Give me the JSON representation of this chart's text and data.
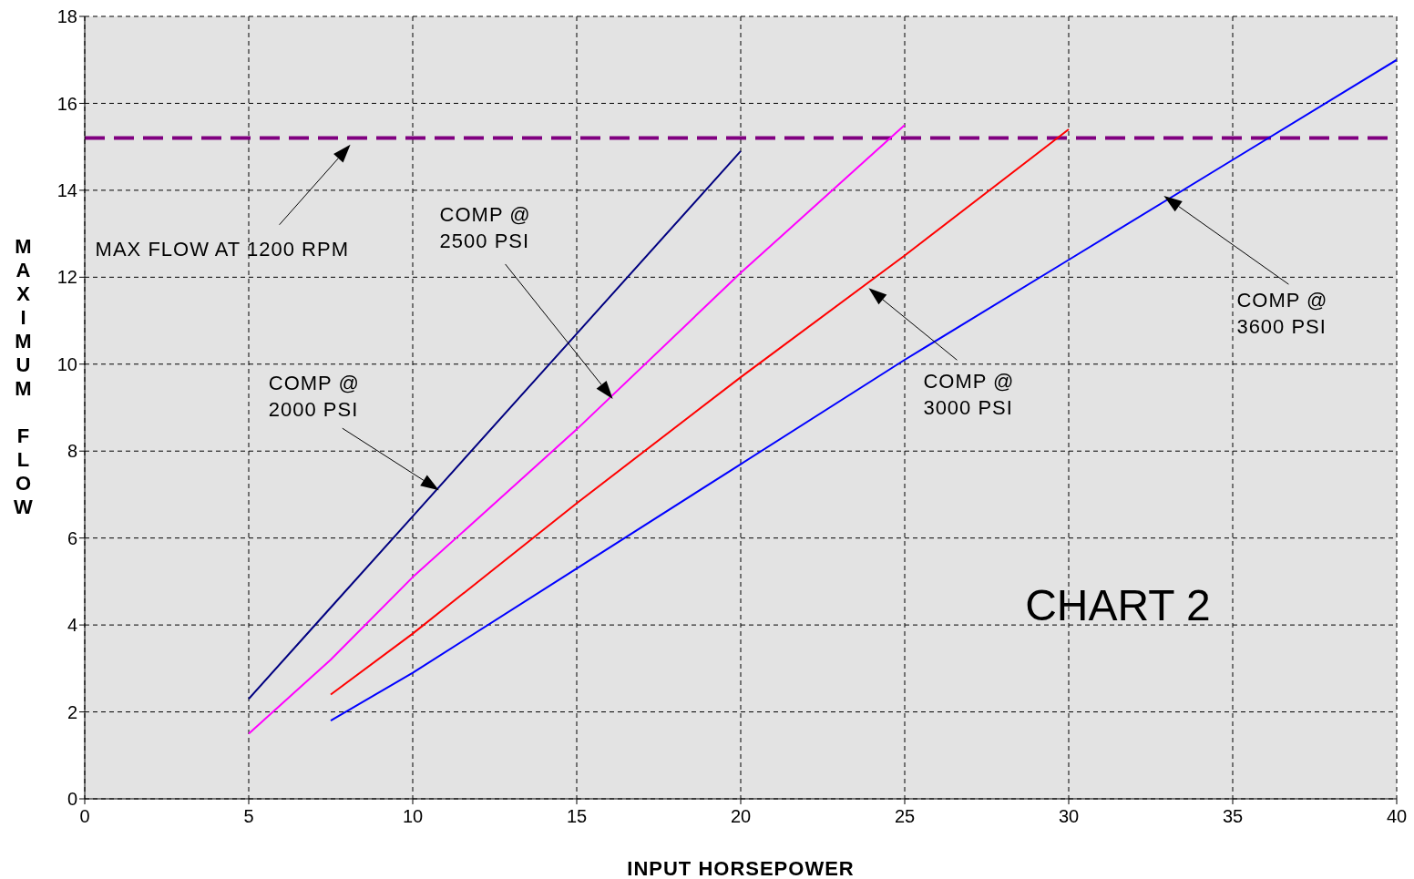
{
  "chart_data": {
    "type": "line",
    "xlabel": "INPUT HORSEPOWER",
    "ylabel": "MAXIMUM FLOW",
    "xlim": [
      0,
      40
    ],
    "xticks": [
      0,
      5,
      10,
      15,
      20,
      25,
      30,
      35,
      40
    ],
    "ylim": [
      0,
      18
    ],
    "yticks": [
      0,
      2,
      4,
      6,
      8,
      10,
      12,
      14,
      16,
      18
    ],
    "grid": true,
    "marker": "none",
    "series": [
      {
        "color": "#000080",
        "x": [
          5,
          7.5,
          10,
          15,
          20
        ],
        "values": [
          2.3,
          4.4,
          6.5,
          10.7,
          14.9
        ]
      },
      {
        "color": "#ff00ff",
        "x": [
          5,
          7.5,
          10,
          15,
          20,
          25
        ],
        "values": [
          1.5,
          3.2,
          5.1,
          8.5,
          12.1,
          15.5
        ]
      },
      {
        "color": "#ff0000",
        "x": [
          7.5,
          10,
          15,
          20,
          25,
          30
        ],
        "values": [
          2.4,
          3.8,
          6.8,
          9.7,
          12.5,
          15.4
        ]
      },
      {
        "color": "#0000ff",
        "x": [
          7.5,
          10,
          15,
          20,
          25,
          30,
          35,
          40
        ],
        "values": [
          1.8,
          2.9,
          5.3,
          7.7,
          10.1,
          12.4,
          14.7,
          17
        ]
      }
    ],
    "ref_lines": [
      {
        "axis": "y",
        "value": 15.2,
        "color": "#800080",
        "line_style": "dashed"
      }
    ],
    "annotations": [
      "MAX FLOW  AT 1200 RPM",
      "COMP @\n2000 PSI",
      "COMP @\n2500 PSI",
      "COMP @\n3000 PSI",
      "COMP @\n3600 PSI",
      "CHART 2"
    ]
  }
}
